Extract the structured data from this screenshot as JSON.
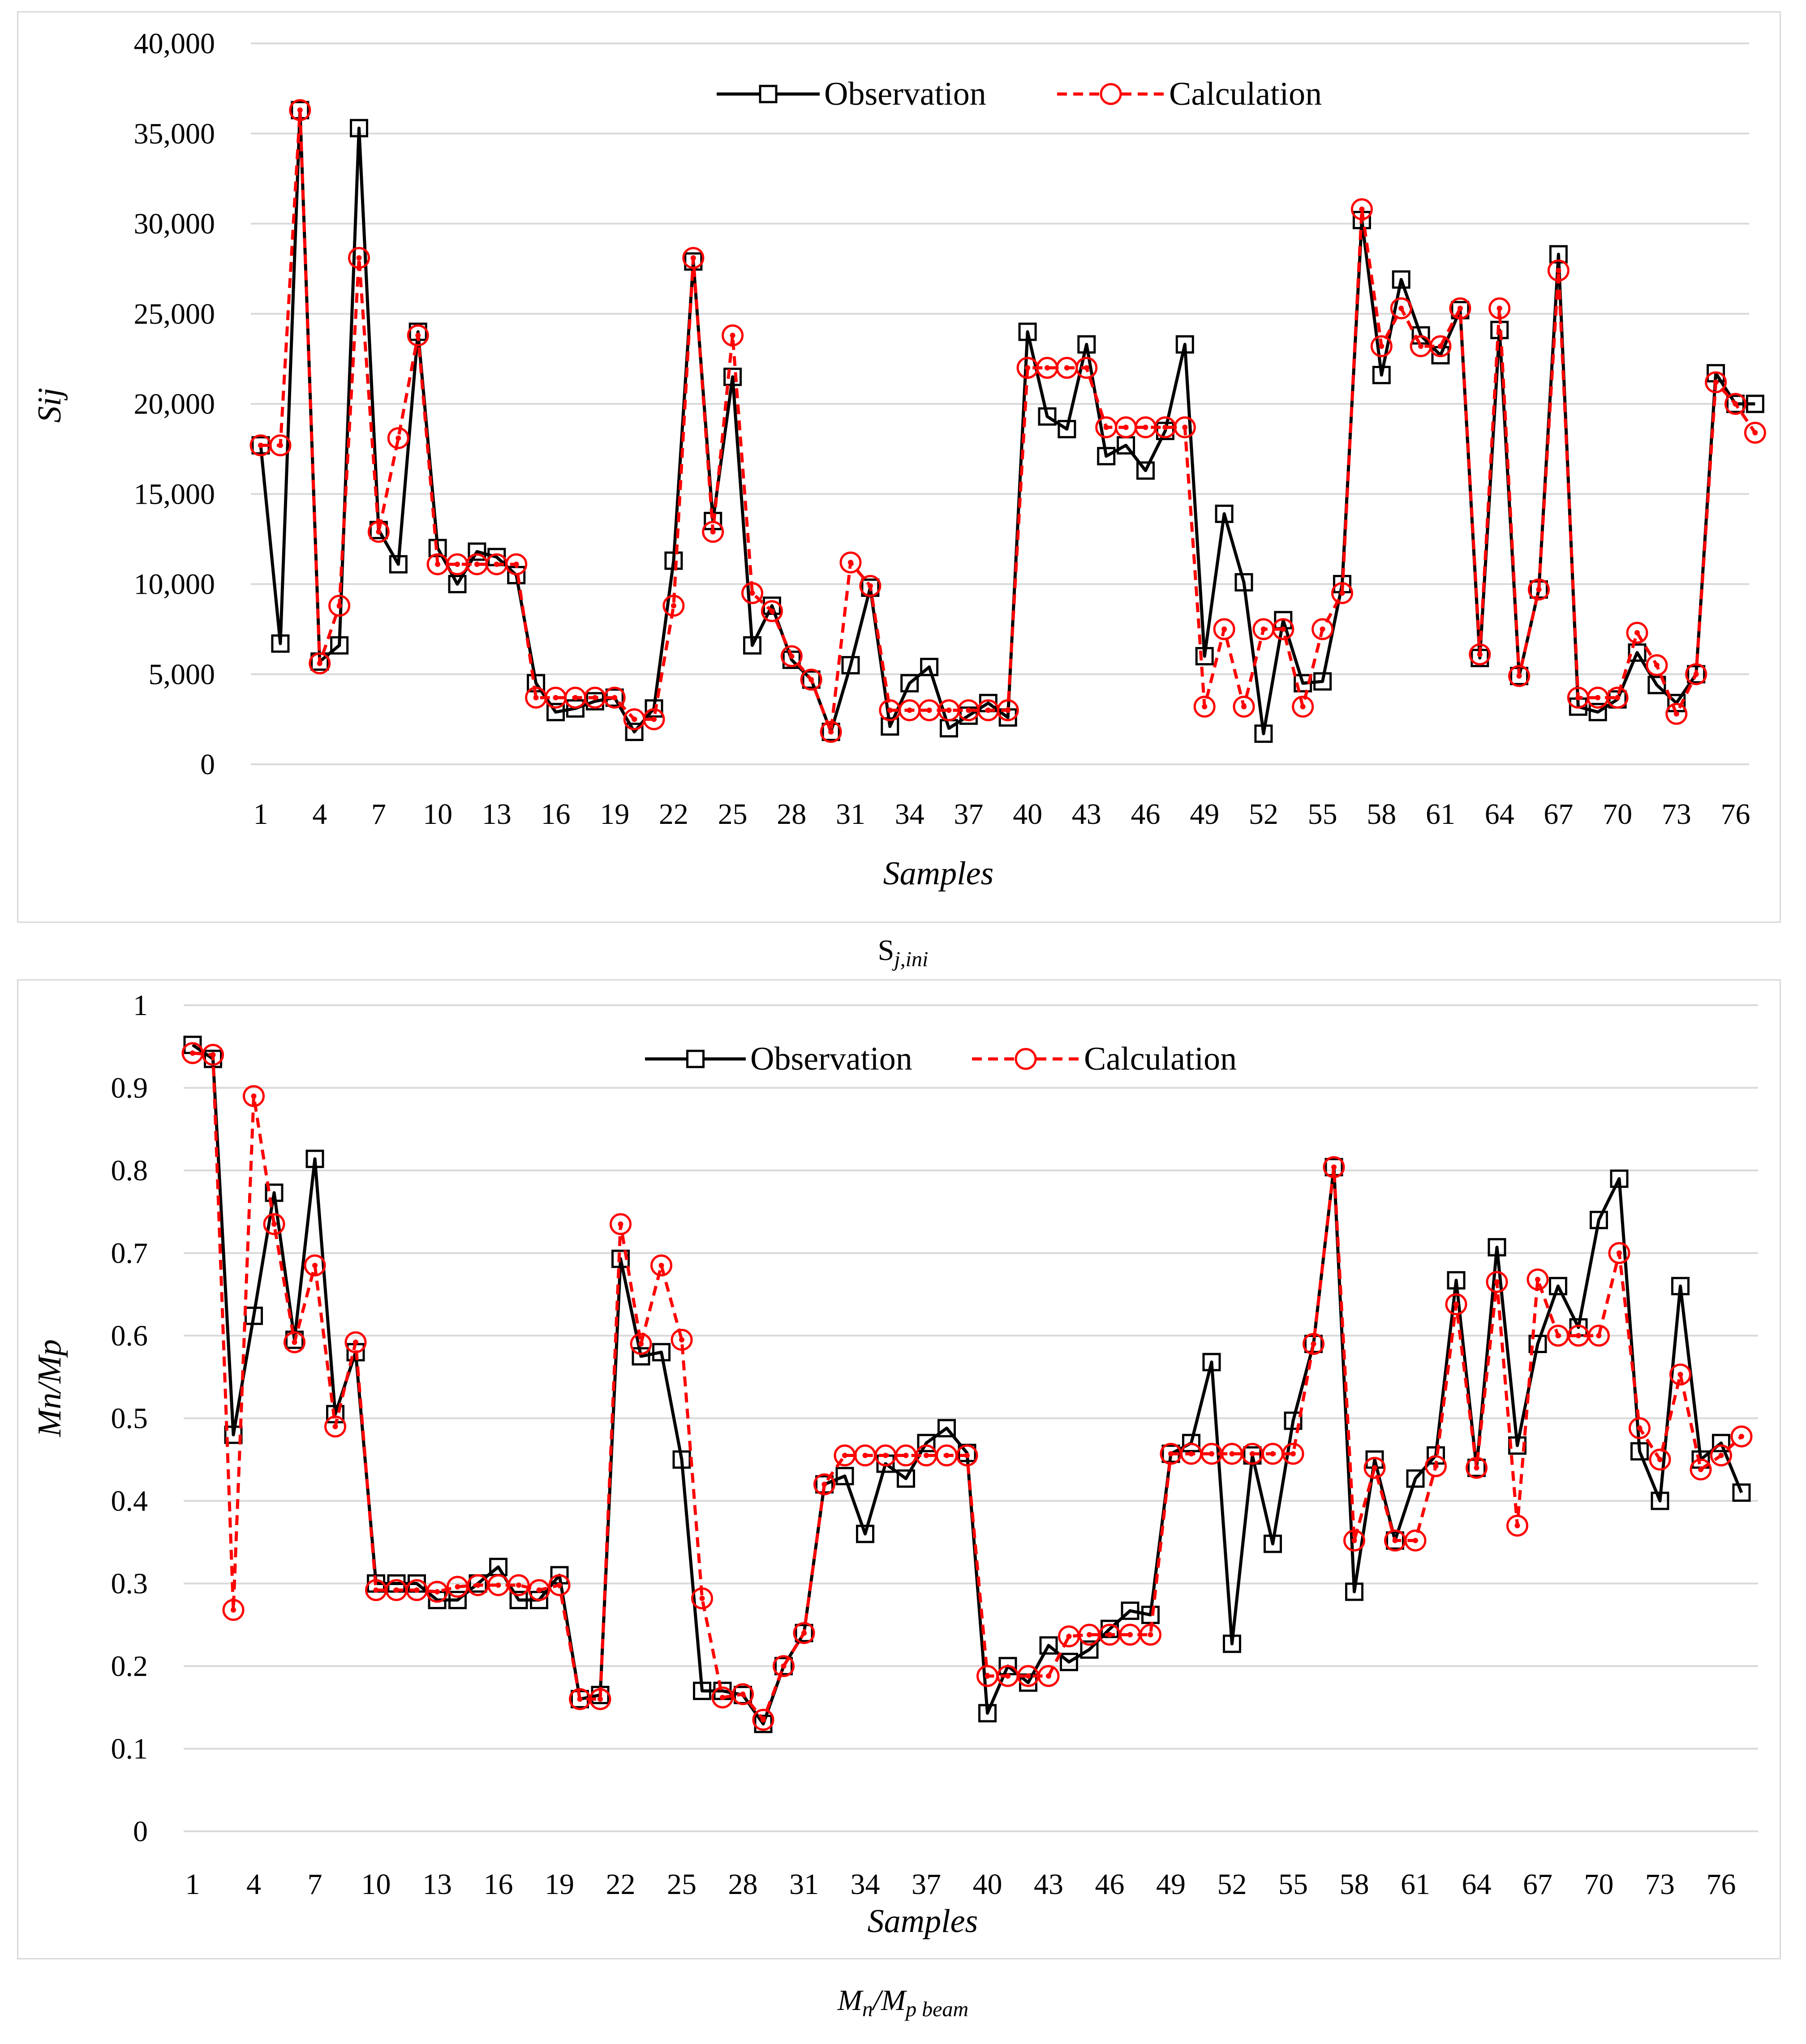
{
  "chart_data": [
    {
      "type": "line",
      "caption": {
        "main": "S",
        "sub": "j,ini"
      },
      "xlabel": "Samples",
      "ylabel": "Sij",
      "ylim": [
        0,
        40000
      ],
      "y_ticks": [
        0,
        5000,
        10000,
        15000,
        20000,
        25000,
        30000,
        35000,
        40000
      ],
      "y_tick_labels": [
        "0",
        "5,000",
        "10,000",
        "15,000",
        "20,000",
        "25,000",
        "30,000",
        "35,000",
        "40,000"
      ],
      "x_tick_labels": [
        "1",
        "4",
        "7",
        "10",
        "13",
        "16",
        "19",
        "22",
        "25",
        "28",
        "31",
        "34",
        "37",
        "40",
        "43",
        "46",
        "49",
        "52",
        "55",
        "58",
        "61",
        "64",
        "67",
        "70",
        "73",
        "76"
      ],
      "legend": [
        "Observation",
        "Calculation"
      ],
      "colors": {
        "observation": "#000000",
        "calculation": "#ff0000",
        "grid": "#d9d9d9"
      },
      "series": [
        {
          "name": "Observation",
          "values": [
            17700,
            6700,
            36300,
            5700,
            6600,
            35300,
            13000,
            11100,
            24000,
            12000,
            10000,
            11800,
            11500,
            10500,
            4500,
            2900,
            3100,
            3500,
            3700,
            1800,
            3100,
            11300,
            27900,
            13500,
            21500,
            6600,
            8800,
            5800,
            4700,
            1800,
            5500,
            9800,
            2100,
            4500,
            5400,
            2000,
            2700,
            3400,
            2600,
            24000,
            19300,
            18600,
            23300,
            17100,
            17700,
            16300,
            18500,
            23300,
            6000,
            13900,
            10100,
            1700,
            8000,
            4500,
            4600,
            10000,
            30200,
            21600,
            26900,
            23800,
            22700,
            25200,
            5900,
            24100,
            4900,
            9700,
            28300,
            3200,
            2900,
            3600,
            6200,
            4400,
            3400,
            5000,
            21700,
            20000,
            20000
          ]
        },
        {
          "name": "Calculation",
          "values": [
            17700,
            17700,
            36300,
            5600,
            8800,
            28100,
            12900,
            18100,
            23800,
            11100,
            11100,
            11100,
            11100,
            11100,
            3700,
            3700,
            3700,
            3700,
            3700,
            2500,
            2500,
            8800,
            28100,
            12900,
            23800,
            9500,
            8500,
            6000,
            4700,
            1800,
            11200,
            9900,
            3000,
            3000,
            3000,
            3000,
            3000,
            3000,
            3000,
            22000,
            22000,
            22000,
            22000,
            18700,
            18700,
            18700,
            18700,
            18700,
            3200,
            7500,
            3200,
            7500,
            7500,
            3200,
            7500,
            9500,
            30800,
            23200,
            25300,
            23200,
            23200,
            25300,
            6100,
            25300,
            4900,
            9700,
            27400,
            3700,
            3700,
            3700,
            7300,
            5500,
            2800,
            5000,
            21200,
            20000,
            18400
          ]
        }
      ]
    },
    {
      "type": "line",
      "caption": {
        "main": "M",
        "sub1": "n",
        "mid": "/M",
        "sub2": "p beam"
      },
      "xlabel": "Samples",
      "ylabel": "Mn/Mp",
      "ylim": [
        0,
        1
      ],
      "y_ticks": [
        0,
        0.1,
        0.2,
        0.3,
        0.4,
        0.5,
        0.6,
        0.7,
        0.8,
        0.9,
        1
      ],
      "y_tick_labels": [
        "0",
        "0.1",
        "0.2",
        "0.3",
        "0.4",
        "0.5",
        "0.6",
        "0.7",
        "0.8",
        "0.9",
        "1"
      ],
      "x_tick_labels": [
        "1",
        "4",
        "7",
        "10",
        "13",
        "16",
        "19",
        "22",
        "25",
        "28",
        "31",
        "34",
        "37",
        "40",
        "43",
        "46",
        "49",
        "52",
        "55",
        "58",
        "61",
        "64",
        "67",
        "70",
        "73",
        "76"
      ],
      "legend": [
        "Observation",
        "Calculation"
      ],
      "colors": {
        "observation": "#000000",
        "calculation": "#ff0000",
        "grid": "#d9d9d9"
      },
      "series": [
        {
          "name": "Observation",
          "values": [
            0.952,
            0.935,
            0.48,
            0.624,
            0.773,
            0.595,
            0.814,
            0.505,
            0.58,
            0.3,
            0.3,
            0.3,
            0.28,
            0.28,
            0.3,
            0.32,
            0.28,
            0.28,
            0.31,
            0.16,
            0.165,
            0.693,
            0.575,
            0.58,
            0.45,
            0.17,
            0.17,
            0.165,
            0.13,
            0.2,
            0.24,
            0.42,
            0.43,
            0.36,
            0.445,
            0.427,
            0.47,
            0.488,
            0.458,
            0.143,
            0.2,
            0.18,
            0.225,
            0.205,
            0.22,
            0.245,
            0.267,
            0.262,
            0.457,
            0.47,
            0.568,
            0.227,
            0.455,
            0.348,
            0.497,
            0.59,
            0.804,
            0.29,
            0.45,
            0.352,
            0.427,
            0.455,
            0.667,
            0.44,
            0.707,
            0.467,
            0.59,
            0.66,
            0.61,
            0.74,
            0.79,
            0.46,
            0.4,
            0.66,
            0.45,
            0.47,
            0.41
          ]
        },
        {
          "name": "Calculation",
          "values": [
            0.942,
            0.94,
            0.268,
            0.89,
            0.735,
            0.592,
            0.685,
            0.49,
            0.592,
            0.292,
            0.292,
            0.292,
            0.29,
            0.296,
            0.298,
            0.298,
            0.298,
            0.292,
            0.298,
            0.16,
            0.16,
            0.735,
            0.59,
            0.685,
            0.595,
            0.282,
            0.162,
            0.166,
            0.135,
            0.2,
            0.24,
            0.42,
            0.455,
            0.455,
            0.455,
            0.455,
            0.455,
            0.455,
            0.455,
            0.188,
            0.188,
            0.188,
            0.188,
            0.236,
            0.238,
            0.238,
            0.238,
            0.238,
            0.457,
            0.457,
            0.457,
            0.457,
            0.457,
            0.457,
            0.457,
            0.59,
            0.804,
            0.352,
            0.44,
            0.352,
            0.352,
            0.442,
            0.638,
            0.44,
            0.665,
            0.37,
            0.668,
            0.6,
            0.6,
            0.6,
            0.7,
            0.488,
            0.45,
            0.553,
            0.438,
            0.455,
            0.478
          ]
        }
      ]
    }
  ]
}
